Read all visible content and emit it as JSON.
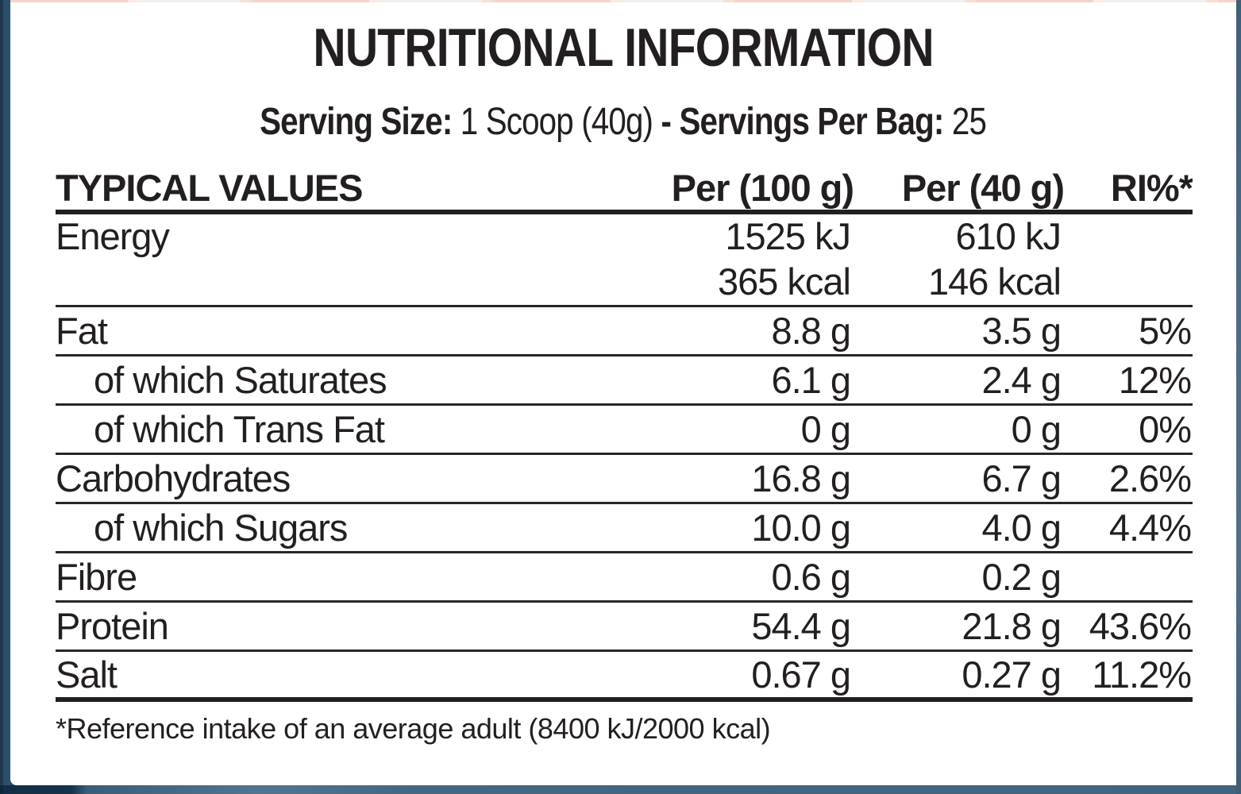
{
  "colors": {
    "text": "#231f20",
    "card_background": "#ffffff",
    "rule_color": "#231f20",
    "border_navy_dark": "#16334b",
    "border_navy": "#2c4f6b",
    "border_slate_light": "#84a0b2",
    "border_slate": "#4a6d87",
    "top_strip_pink": "#f5d3c9",
    "top_strip_offwhite": "#eef2f4"
  },
  "header": {
    "title": "NUTRITIONAL INFORMATION",
    "serving": {
      "size_label": "Serving Size: ",
      "size_value": "1 Scoop (40g) ",
      "per_bag_label": "- Servings Per Bag: ",
      "per_bag_value": "25"
    }
  },
  "table": {
    "columns": [
      "TYPICAL VALUES",
      "Per (100 g)",
      "Per (40 g)",
      "RI%*"
    ],
    "rows": [
      {
        "label": "Energy",
        "per100": "1525 kJ",
        "per40": "610 kJ",
        "ri": ""
      },
      {
        "label": "",
        "per100": "365 kcal",
        "per40": "146 kcal",
        "ri": ""
      },
      {
        "label": "Fat",
        "per100": "8.8 g",
        "per40": "3.5 g",
        "ri": "5%"
      },
      {
        "label": "of which Saturates",
        "per100": "6.1 g",
        "per40": "2.4 g",
        "ri": "12%"
      },
      {
        "label": "of which Trans Fat",
        "per100": "0 g",
        "per40": "0 g",
        "ri": "0%"
      },
      {
        "label": "Carbohydrates",
        "per100": "16.8 g",
        "per40": "6.7 g",
        "ri": "2.6%"
      },
      {
        "label": "of which Sugars",
        "per100": "10.0 g",
        "per40": "4.0 g",
        "ri": "4.4%"
      },
      {
        "label": "Fibre",
        "per100": "0.6 g",
        "per40": "0.2 g",
        "ri": ""
      },
      {
        "label": "Protein",
        "per100": "54.4 g",
        "per40": "21.8 g",
        "ri": "43.6%"
      },
      {
        "label": "Salt",
        "per100": "0.67 g",
        "per40": "0.27 g",
        "ri": "11.2%"
      }
    ],
    "footnote": "*Reference intake of an average adult (8400 kJ/2000 kcal)"
  }
}
